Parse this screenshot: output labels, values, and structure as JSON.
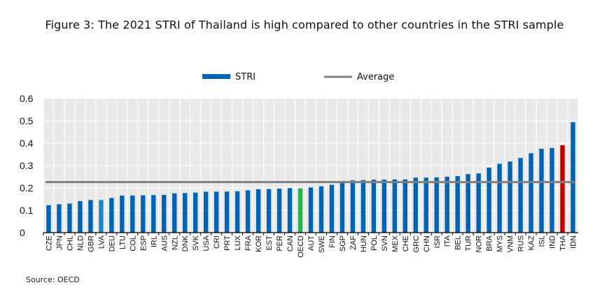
{
  "title": "Figure 3: The 2021 STRI of Thailand is high compared to other countries in the STRI sample",
  "source": "Source: OECD",
  "chart_data": {
    "type": "bar",
    "title": "Figure 3: The 2021 STRI of Thailand is high compared to other countries in the STRI sample",
    "xlabel": "",
    "ylabel": "",
    "ylim": [
      0,
      0.6
    ],
    "yticks": [
      "0",
      "0.1",
      "0.2",
      "0.3",
      "0.4",
      "0.5",
      "0.6"
    ],
    "grid": true,
    "legend": {
      "placement": "top-center",
      "entries": [
        "STRI",
        "Average"
      ]
    },
    "categories": [
      "CZE",
      "JPN",
      "CHL",
      "NLD",
      "GBR",
      "LVA",
      "DEU",
      "LTU",
      "COL",
      "ESP",
      "IRL",
      "AUS",
      "NZL",
      "DNK",
      "SVK",
      "USA",
      "CRI",
      "PRT",
      "LUX",
      "FRA",
      "KOR",
      "EST",
      "PER",
      "CAN",
      "OECD",
      "AUT",
      "SWE",
      "FIN",
      "SGP",
      "ZAF",
      "HUN",
      "POL",
      "SVN",
      "MEX",
      "CHE",
      "GRC",
      "CHN",
      "ISR",
      "ITA",
      "BEL",
      "TUR",
      "NOR",
      "BRA",
      "MYS",
      "VNM",
      "RUS",
      "KAZ",
      "ISL",
      "IND",
      "THA",
      "IDN"
    ],
    "series": [
      {
        "name": "STRI",
        "values": [
          0.123,
          0.127,
          0.13,
          0.141,
          0.146,
          0.146,
          0.155,
          0.166,
          0.166,
          0.167,
          0.168,
          0.169,
          0.176,
          0.177,
          0.179,
          0.183,
          0.183,
          0.184,
          0.185,
          0.189,
          0.194,
          0.195,
          0.197,
          0.199,
          0.198,
          0.202,
          0.207,
          0.214,
          0.223,
          0.234,
          0.235,
          0.237,
          0.237,
          0.238,
          0.238,
          0.246,
          0.246,
          0.247,
          0.25,
          0.253,
          0.262,
          0.265,
          0.291,
          0.308,
          0.318,
          0.334,
          0.355,
          0.375,
          0.379,
          0.391,
          0.494
        ]
      },
      {
        "name": "Average",
        "value": 0.226
      }
    ],
    "colors": {
      "bar": "#0063b4",
      "lva": "#1a86cc",
      "oecd": "#22b34a",
      "tha": "#c00000",
      "average": "#808080",
      "plot_bg": "#e9e9e9"
    }
  }
}
